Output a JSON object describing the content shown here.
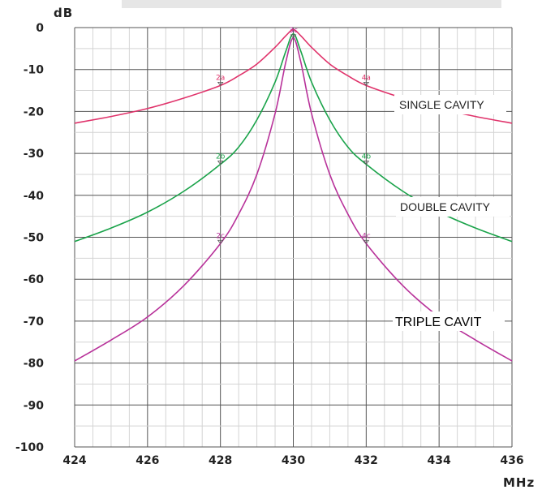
{
  "chart_data": {
    "type": "line",
    "title": "",
    "xlabel": "MHz",
    "ylabel": "dB",
    "xlim": [
      424,
      436
    ],
    "ylim": [
      -100,
      0
    ],
    "x_ticks": [
      "424",
      "426",
      "428",
      "430",
      "432",
      "434",
      "436"
    ],
    "y_ticks": [
      "0",
      "-10",
      "-20",
      "-30",
      "-40",
      "-50",
      "-60",
      "-70",
      "-80",
      "-90",
      "-100"
    ],
    "grid": true,
    "series": [
      {
        "name": "SINGLE CAVITY",
        "color": "#e0336b",
        "x": [
          424,
          425,
          426,
          427,
          428,
          428.5,
          429,
          429.5,
          429.8,
          430,
          430.2,
          430.5,
          431,
          431.5,
          432,
          433,
          434,
          435,
          436
        ],
        "y": [
          -22.8,
          -21.2,
          -19.3,
          -16.8,
          -13.8,
          -11.5,
          -8.7,
          -4.7,
          -1.9,
          -0.5,
          -1.9,
          -4.7,
          -8.7,
          -11.5,
          -13.8,
          -16.8,
          -19.3,
          -21.2,
          -22.8
        ]
      },
      {
        "name": "DOUBLE CAVITY",
        "color": "#1aa34a",
        "x": [
          424,
          425,
          426,
          427,
          428,
          428.5,
          429,
          429.5,
          429.8,
          430,
          430.2,
          430.5,
          431,
          431.5,
          432,
          433,
          434,
          435,
          436
        ],
        "y": [
          -51,
          -47.8,
          -44,
          -39,
          -32.6,
          -28.5,
          -22,
          -13,
          -5.5,
          -1.5,
          -5.5,
          -13,
          -22,
          -28.5,
          -32.6,
          -39,
          -44,
          -47.8,
          -51
        ]
      },
      {
        "name": "TRIPLE CAVIT",
        "color": "#b8329a",
        "x": [
          424,
          425,
          426,
          427,
          428,
          428.5,
          429,
          429.5,
          429.8,
          430,
          430.2,
          430.5,
          431,
          431.5,
          432,
          433,
          434,
          435,
          436
        ],
        "y": [
          -79.5,
          -74.5,
          -69,
          -61.5,
          -51.5,
          -44.5,
          -35,
          -20.5,
          -8,
          -2.5,
          -8,
          -20.5,
          -35,
          -44.5,
          -51.5,
          -61.5,
          -69,
          -74.5,
          -79.5
        ]
      }
    ],
    "markers": [
      {
        "label": "2a",
        "x": 428,
        "y": -13.8,
        "color": "#e0336b"
      },
      {
        "label": "4a",
        "x": 432,
        "y": -13.8,
        "color": "#e0336b"
      },
      {
        "label": "2b",
        "x": 428,
        "y": -32.6,
        "color": "#1aa34a"
      },
      {
        "label": "4b",
        "x": 432,
        "y": -32.6,
        "color": "#1aa34a"
      },
      {
        "label": "2c",
        "x": 428,
        "y": -51.5,
        "color": "#b8329a"
      },
      {
        "label": "4c",
        "x": 432,
        "y": -51.5,
        "color": "#b8329a"
      },
      {
        "label": "3c",
        "x": 430,
        "y": -2.5,
        "color": "#b8329a"
      }
    ],
    "annotations": [
      {
        "text": "SINGLE CAVITY",
        "series": 0
      },
      {
        "text": "DOUBLE CAVITY",
        "series": 1
      },
      {
        "text": "TRIPLE CAVIT",
        "series": 2
      }
    ]
  }
}
